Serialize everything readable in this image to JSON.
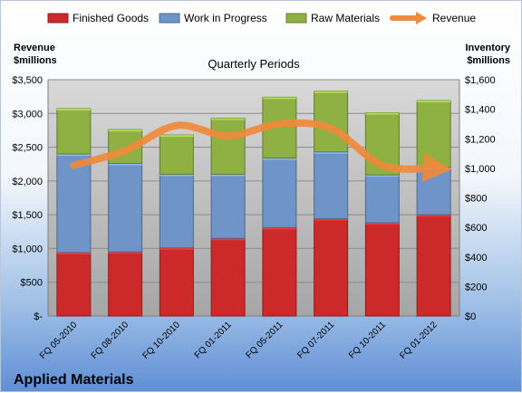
{
  "chart_data": {
    "type": "bar",
    "stacked": true,
    "subtitle": "Quarterly Periods",
    "company": "Applied Materials",
    "left_axis_title": [
      "Revenue",
      "$millions"
    ],
    "right_axis_title": [
      "Inventory",
      "$millions"
    ],
    "categories": [
      "FQ 05-2010",
      "FQ 08-2010",
      "FQ 10-2010",
      "FQ 01-2011",
      "FQ 05-2011",
      "FQ 07-2011",
      "FQ 10-2011",
      "FQ 01-2012"
    ],
    "left_axis": {
      "min": 0,
      "max": 3500,
      "step": 500,
      "tick_labels": [
        "$-",
        "$500",
        "$1,000",
        "$1,500",
        "$2,000",
        "$2,500",
        "$3,000",
        "$3,500"
      ]
    },
    "right_axis": {
      "min": 0,
      "max": 1600,
      "step": 200,
      "tick_labels": [
        "$0",
        "$200",
        "$400",
        "$600",
        "$800",
        "$1,000",
        "$1,200",
        "$1,400",
        "$1,600"
      ]
    },
    "series": [
      {
        "name": "Finished Goods",
        "axis": "left",
        "color": "#cc2a2a",
        "values": [
          940,
          950,
          1010,
          1150,
          1310,
          1440,
          1380,
          1500
        ]
      },
      {
        "name": "Work in Progress",
        "axis": "left",
        "color": "#6f94c8",
        "values": [
          1460,
          1310,
          1090,
          950,
          1030,
          990,
          710,
          700
        ]
      },
      {
        "name": "Raw Materials",
        "axis": "left",
        "color": "#8fb043",
        "values": [
          670,
          500,
          580,
          830,
          900,
          900,
          920,
          990
        ]
      },
      {
        "name": "Revenue",
        "axis": "right",
        "type": "line",
        "color": "#f08a3c",
        "values": [
          1020,
          1120,
          1290,
          1220,
          1300,
          1270,
          1020,
          1000
        ]
      }
    ],
    "legend": {
      "position": "top"
    },
    "grid": true
  }
}
